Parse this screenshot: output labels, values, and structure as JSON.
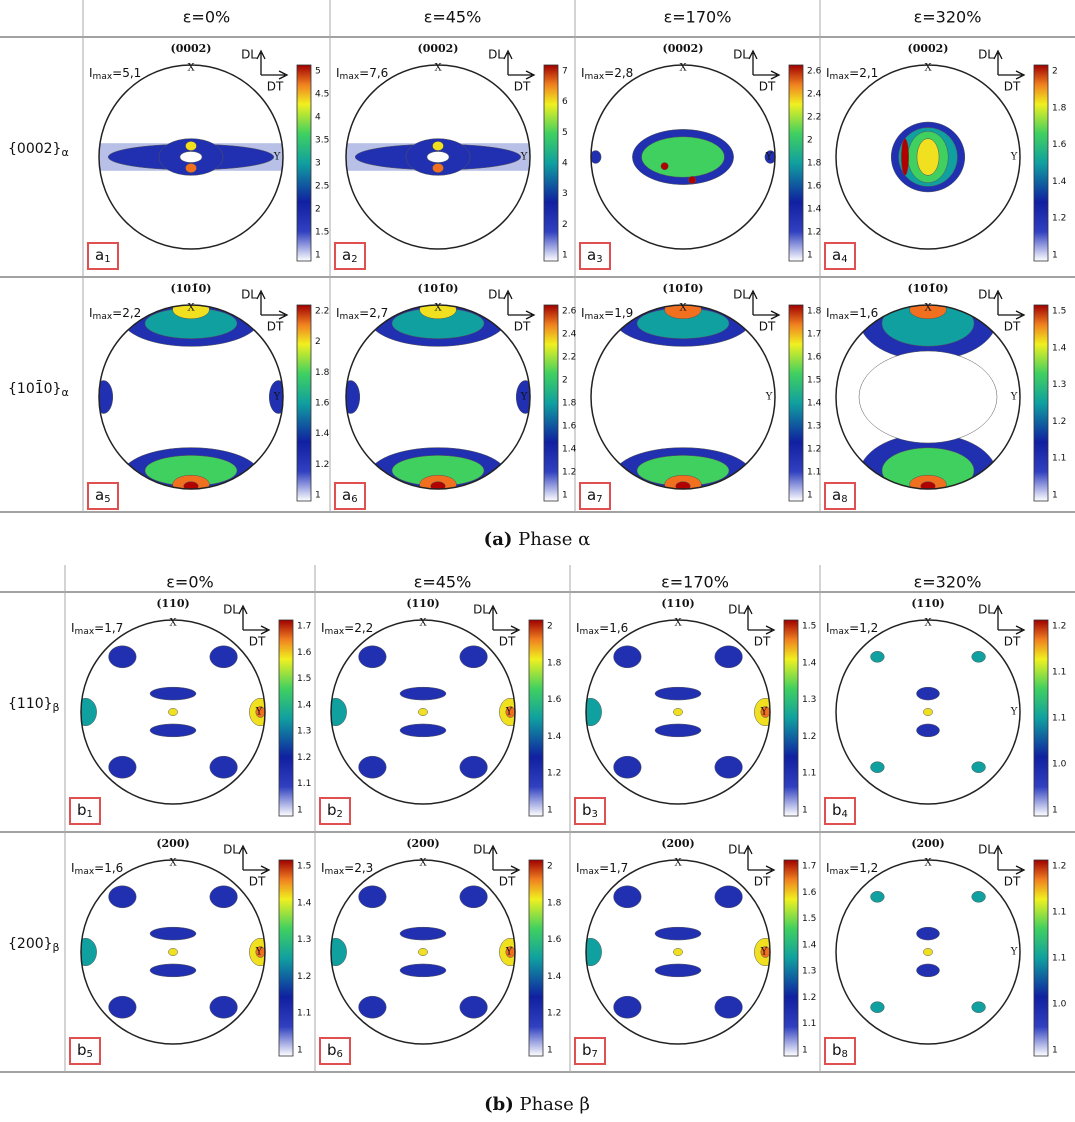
{
  "symbols": {
    "I": "I",
    "max": "max",
    "X": "X",
    "Y": "Y",
    "DL": "DL",
    "DT": "DT"
  },
  "sections": [
    {
      "columns": [
        "ε=0%",
        "ε=45%",
        "ε=170%",
        "ε=320%"
      ],
      "caption": {
        "tag": "(a)",
        "text": "Phase α"
      },
      "rows": [
        {
          "label": "{0002}",
          "sub": "α",
          "pole": "(0002)",
          "cells": [
            {
              "imax": "=5,1",
              "colorbar": [
                "5",
                "4.5",
                "4",
                "3.5",
                "3",
                "2.5",
                "2",
                "1.5",
                "1"
              ],
              "tag": [
                "a",
                "1"
              ]
            },
            {
              "imax": "=7,6",
              "colorbar": [
                "7",
                "6",
                "5",
                "4",
                "3",
                "2",
                "1"
              ],
              "tag": [
                "a",
                "2"
              ]
            },
            {
              "imax": "=2,8",
              "colorbar": [
                "2.6",
                "2.4",
                "2.2",
                "2",
                "1.8",
                "1.6",
                "1.4",
                "1.2",
                "1"
              ],
              "tag": [
                "a",
                "3"
              ]
            },
            {
              "imax": "=2,1",
              "colorbar": [
                "2",
                "1.8",
                "1.6",
                "1.4",
                "1.2",
                "1"
              ],
              "tag": [
                "a",
                "4"
              ]
            }
          ]
        },
        {
          "label": "{101̄0}",
          "sub": "α",
          "pole": "(101̄0)",
          "cells": [
            {
              "imax": "=2,2",
              "colorbar": [
                "2.2",
                "2",
                "1.8",
                "1.6",
                "1.4",
                "1.2",
                "1"
              ],
              "tag": [
                "a",
                "5"
              ]
            },
            {
              "imax": "=2,7",
              "colorbar": [
                "2.6",
                "2.4",
                "2.2",
                "2",
                "1.8",
                "1.6",
                "1.4",
                "1.2",
                "1"
              ],
              "tag": [
                "a",
                "6"
              ]
            },
            {
              "imax": "=1,9",
              "colorbar": [
                "1.8",
                "1.7",
                "1.6",
                "1.5",
                "1.4",
                "1.3",
                "1.2",
                "1.1",
                "1"
              ],
              "tag": [
                "a",
                "7"
              ]
            },
            {
              "imax": "=1,6",
              "colorbar": [
                "1.5",
                "1.4",
                "1.3",
                "1.2",
                "1.1",
                "1"
              ],
              "tag": [
                "a",
                "8"
              ]
            }
          ]
        }
      ]
    },
    {
      "columns": [
        "ε=0%",
        "ε=45%",
        "ε=170%",
        "ε=320%"
      ],
      "caption": {
        "tag": "(b)",
        "text": "Phase β"
      },
      "rows": [
        {
          "label": "{110}",
          "sub": "β",
          "pole": "(110)",
          "cells": [
            {
              "imax": "=1,7",
              "colorbar": [
                "1.7",
                "1.6",
                "1.5",
                "1.4",
                "1.3",
                "1.2",
                "1.1",
                "1"
              ],
              "tag": [
                "b",
                "1"
              ]
            },
            {
              "imax": "=2,2",
              "colorbar": [
                "2",
                "1.8",
                "1.6",
                "1.4",
                "1.2",
                "1"
              ],
              "tag": [
                "b",
                "2"
              ]
            },
            {
              "imax": "=1,6",
              "colorbar": [
                "1.5",
                "1.4",
                "1.3",
                "1.2",
                "1.1",
                "1"
              ],
              "tag": [
                "b",
                "3"
              ]
            },
            {
              "imax": "=1,2",
              "colorbar": [
                "1.2",
                "1.1",
                "1.1",
                "1.0",
                "1"
              ],
              "tag": [
                "b",
                "4"
              ]
            }
          ]
        },
        {
          "label": "{200}",
          "sub": "β",
          "pole": "(200)",
          "cells": [
            {
              "imax": "=1,6",
              "colorbar": [
                "1.5",
                "1.4",
                "1.3",
                "1.2",
                "1.1",
                "1"
              ],
              "tag": [
                "b",
                "5"
              ]
            },
            {
              "imax": "=2,3",
              "colorbar": [
                "2",
                "1.8",
                "1.6",
                "1.4",
                "1.2",
                "1"
              ],
              "tag": [
                "b",
                "6"
              ]
            },
            {
              "imax": "=1,7",
              "colorbar": [
                "1.7",
                "1.6",
                "1.5",
                "1.4",
                "1.3",
                "1.2",
                "1.1",
                "1"
              ],
              "tag": [
                "b",
                "7"
              ]
            },
            {
              "imax": "=1,2",
              "colorbar": [
                "1.2",
                "1.1",
                "1.1",
                "1.0",
                "1"
              ],
              "tag": [
                "b",
                "8"
              ]
            }
          ]
        }
      ]
    }
  ]
}
